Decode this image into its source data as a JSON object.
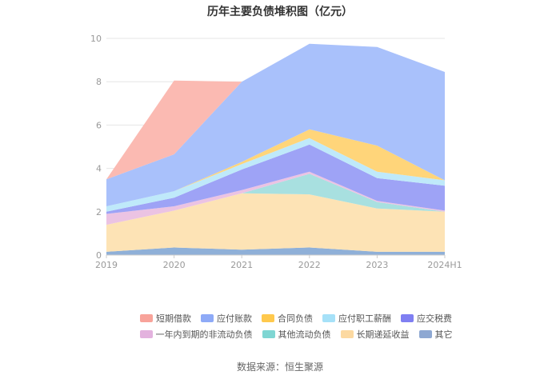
{
  "title": "历年主要负债堆积图（亿元）",
  "source": "数据来源：恒生聚源",
  "chart_data": {
    "type": "area",
    "stacked": true,
    "x": [
      "2019",
      "2020",
      "2021",
      "2022",
      "2023",
      "2024H1"
    ],
    "ylim": [
      0,
      10
    ],
    "yticks": [
      0,
      2,
      4,
      6,
      8,
      10
    ],
    "grid": true,
    "legend_position": "bottom",
    "series": [
      {
        "name": "其它",
        "color": "#8fb0d8",
        "values": [
          0.15,
          0.35,
          0.25,
          0.35,
          0.15,
          0.15
        ]
      },
      {
        "name": "长期递延收益",
        "color": "#fde3b5",
        "values": [
          1.25,
          1.7,
          2.6,
          2.45,
          2.0,
          1.85
        ]
      },
      {
        "name": "其他流动负债",
        "color": "#a8e0e0",
        "values": [
          0,
          0,
          0,
          0.95,
          0.3,
          0
        ]
      },
      {
        "name": "一年内到期的非流动负债",
        "color": "#ebc3e3",
        "values": [
          0.5,
          0.2,
          0.15,
          0.1,
          0.05,
          0.05
        ]
      },
      {
        "name": "应交税费",
        "color": "#9ea3f6",
        "values": [
          0.1,
          0.4,
          0.95,
          1.25,
          1.05,
          1.15
        ]
      },
      {
        "name": "应付职工薪酬",
        "color": "#bfe9fa",
        "values": [
          0.25,
          0.3,
          0.25,
          0.3,
          0.3,
          0.25
        ]
      },
      {
        "name": "合同负债",
        "color": "#ffd57a",
        "values": [
          0,
          0,
          0.1,
          0.4,
          1.2,
          0
        ]
      },
      {
        "name": "应付账款",
        "color": "#a9c1fb",
        "values": [
          1.25,
          1.7,
          3.7,
          3.95,
          4.55,
          5.0
        ]
      },
      {
        "name": "短期借款",
        "color": "#fbbab2",
        "values": [
          0,
          3.4,
          0,
          0,
          0,
          0
        ]
      }
    ],
    "legend": [
      [
        {
          "name": "短期借款",
          "color": "#f8a39a"
        },
        {
          "name": "应付账款",
          "color": "#8eaaf7"
        },
        {
          "name": "合同负债",
          "color": "#ffc94d"
        },
        {
          "name": "应付职工薪酬",
          "color": "#a6e1f8"
        },
        {
          "name": "应交税费",
          "color": "#7f7ff2"
        }
      ],
      [
        {
          "name": "一年内到期的非流动负债",
          "color": "#e3b2de"
        },
        {
          "name": "其他流动负债",
          "color": "#7fd6d3"
        },
        {
          "name": "长期递延收益",
          "color": "#fcd9a1"
        },
        {
          "name": "其它",
          "color": "#8ea8d2"
        }
      ]
    ]
  }
}
